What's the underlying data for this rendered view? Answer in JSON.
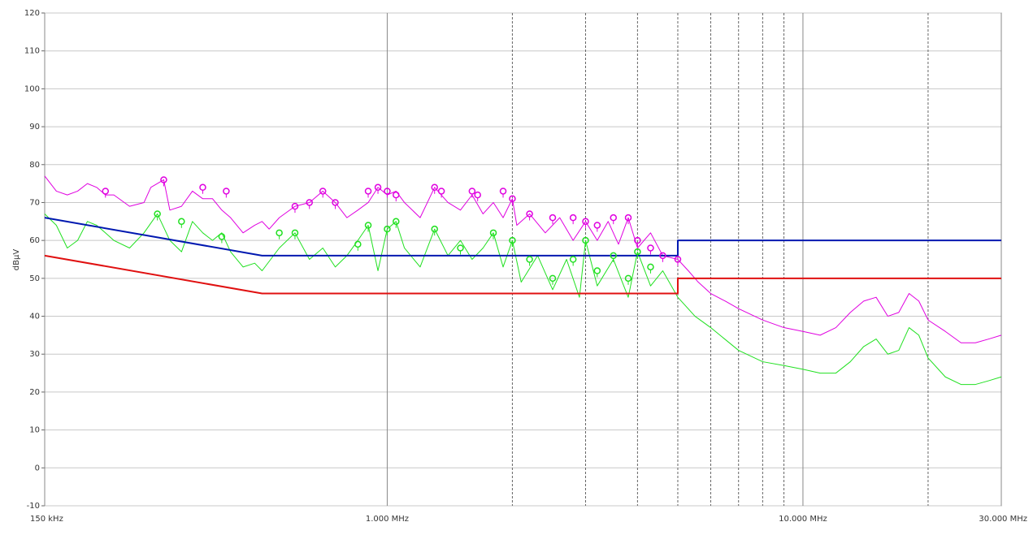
{
  "chart_data": {
    "type": "line",
    "y_label": "dBµV",
    "xscale": "log",
    "xlim": [
      0.15,
      30
    ],
    "ylim": [
      -10,
      120
    ],
    "xticks": [
      {
        "value": 0.15,
        "label": "150 kHz"
      },
      {
        "value": 1,
        "label": "1.000 MHz"
      },
      {
        "value": 10,
        "label": "10.000 MHz"
      },
      {
        "value": 30,
        "label": "30.000 MHz"
      }
    ],
    "yticks": [
      -10,
      0,
      10,
      20,
      30,
      40,
      50,
      60,
      70,
      80,
      90,
      100,
      110,
      120
    ],
    "grid": true,
    "xgrid_dashed": [
      2,
      3,
      4,
      5,
      6,
      7,
      8,
      9,
      20
    ],
    "series": [
      {
        "color": "#e000e0",
        "style": "line",
        "width": 1,
        "x": [
          0.15,
          0.16,
          0.17,
          0.18,
          0.19,
          0.2,
          0.21,
          0.22,
          0.24,
          0.26,
          0.27,
          0.28,
          0.29,
          0.3,
          0.32,
          0.34,
          0.36,
          0.38,
          0.4,
          0.42,
          0.45,
          0.48,
          0.5,
          0.52,
          0.55,
          0.6,
          0.65,
          0.7,
          0.75,
          0.8,
          0.85,
          0.9,
          0.95,
          1.0,
          1.05,
          1.1,
          1.2,
          1.3,
          1.4,
          1.5,
          1.6,
          1.7,
          1.8,
          1.9,
          2.0,
          2.05,
          2.2,
          2.4,
          2.6,
          2.8,
          3.0,
          3.2,
          3.4,
          3.6,
          3.8,
          4.0,
          4.3,
          4.6,
          5.0,
          5.3,
          5.6,
          6.0,
          6.5,
          7.0,
          8.0,
          9.0,
          10,
          11,
          12,
          13,
          14,
          15,
          16,
          17,
          18,
          19,
          20,
          22,
          24,
          26,
          28,
          30
        ],
        "values": [
          77,
          73,
          72,
          73,
          75,
          74,
          72,
          72,
          69,
          70,
          74,
          75,
          76,
          68,
          69,
          73,
          71,
          71,
          68,
          66,
          62,
          64,
          65,
          63,
          66,
          69,
          70,
          73,
          70,
          66,
          68,
          70,
          74,
          72,
          73,
          70,
          66,
          74,
          70,
          68,
          72,
          67,
          70,
          66,
          71,
          64,
          67,
          62,
          66,
          60,
          65,
          60,
          65,
          59,
          66,
          58,
          62,
          56,
          55,
          52,
          49,
          46,
          44,
          42,
          39,
          37,
          36,
          35,
          37,
          41,
          44,
          45,
          40,
          41,
          46,
          44,
          39,
          36,
          33,
          33,
          34,
          35
        ]
      },
      {
        "color": "#20e020",
        "style": "line",
        "width": 1,
        "x": [
          0.15,
          0.16,
          0.17,
          0.18,
          0.19,
          0.2,
          0.21,
          0.22,
          0.24,
          0.26,
          0.28,
          0.3,
          0.32,
          0.34,
          0.36,
          0.38,
          0.4,
          0.42,
          0.45,
          0.48,
          0.5,
          0.55,
          0.6,
          0.65,
          0.7,
          0.75,
          0.8,
          0.85,
          0.9,
          0.95,
          1.0,
          1.05,
          1.1,
          1.2,
          1.3,
          1.4,
          1.5,
          1.6,
          1.7,
          1.8,
          1.9,
          2.0,
          2.1,
          2.3,
          2.5,
          2.7,
          2.9,
          3.0,
          3.2,
          3.5,
          3.8,
          4.0,
          4.3,
          4.6,
          5.0,
          5.5,
          6.0,
          7.0,
          8.0,
          9.0,
          10,
          11,
          12,
          13,
          14,
          15,
          16,
          17,
          18,
          19,
          20,
          22,
          24,
          26,
          28,
          30
        ],
        "values": [
          67,
          64,
          58,
          60,
          65,
          64,
          62,
          60,
          58,
          62,
          67,
          60,
          57,
          65,
          62,
          60,
          62,
          57,
          53,
          54,
          52,
          58,
          62,
          55,
          58,
          53,
          56,
          60,
          64,
          52,
          63,
          65,
          58,
          53,
          63,
          56,
          60,
          55,
          58,
          62,
          53,
          60,
          49,
          56,
          47,
          55,
          45,
          60,
          48,
          55,
          45,
          57,
          48,
          52,
          45,
          40,
          37,
          31,
          28,
          27,
          26,
          25,
          25,
          28,
          32,
          34,
          30,
          31,
          37,
          35,
          29,
          24,
          22,
          22,
          23,
          24
        ]
      },
      {
        "color": "#0018b0",
        "style": "line",
        "width": 2,
        "x": [
          0.15,
          0.5,
          5,
          5,
          30
        ],
        "values": [
          66,
          56,
          56,
          60,
          60
        ]
      },
      {
        "color": "#e01010",
        "style": "line",
        "width": 2,
        "x": [
          0.15,
          0.5,
          5,
          5,
          30
        ],
        "values": [
          56,
          46,
          46,
          50,
          50
        ]
      },
      {
        "color": "#e000e0",
        "style": "markers",
        "x": [
          0.21,
          0.29,
          0.36,
          0.41,
          0.6,
          0.65,
          0.7,
          0.75,
          0.9,
          0.95,
          1.0,
          1.05,
          1.3,
          1.35,
          1.6,
          1.65,
          1.9,
          2.0,
          2.2,
          2.5,
          2.8,
          3.0,
          3.2,
          3.5,
          3.8,
          4.0,
          4.3,
          4.6,
          5.0
        ],
        "values": [
          73,
          76,
          74,
          73,
          69,
          70,
          73,
          70,
          73,
          74,
          73,
          72,
          74,
          73,
          73,
          72,
          73,
          71,
          67,
          66,
          66,
          65,
          64,
          66,
          66,
          60,
          58,
          56,
          55
        ]
      },
      {
        "color": "#20e020",
        "style": "markers",
        "x": [
          0.28,
          0.32,
          0.4,
          0.55,
          0.6,
          0.85,
          0.9,
          1.0,
          1.05,
          1.3,
          1.5,
          1.8,
          2.0,
          2.2,
          2.5,
          2.8,
          3.0,
          3.2,
          3.5,
          3.8,
          4.0,
          4.3
        ],
        "values": [
          67,
          65,
          61,
          62,
          62,
          59,
          64,
          63,
          65,
          63,
          58,
          62,
          60,
          55,
          50,
          55,
          60,
          52,
          56,
          50,
          57,
          53
        ]
      }
    ]
  }
}
